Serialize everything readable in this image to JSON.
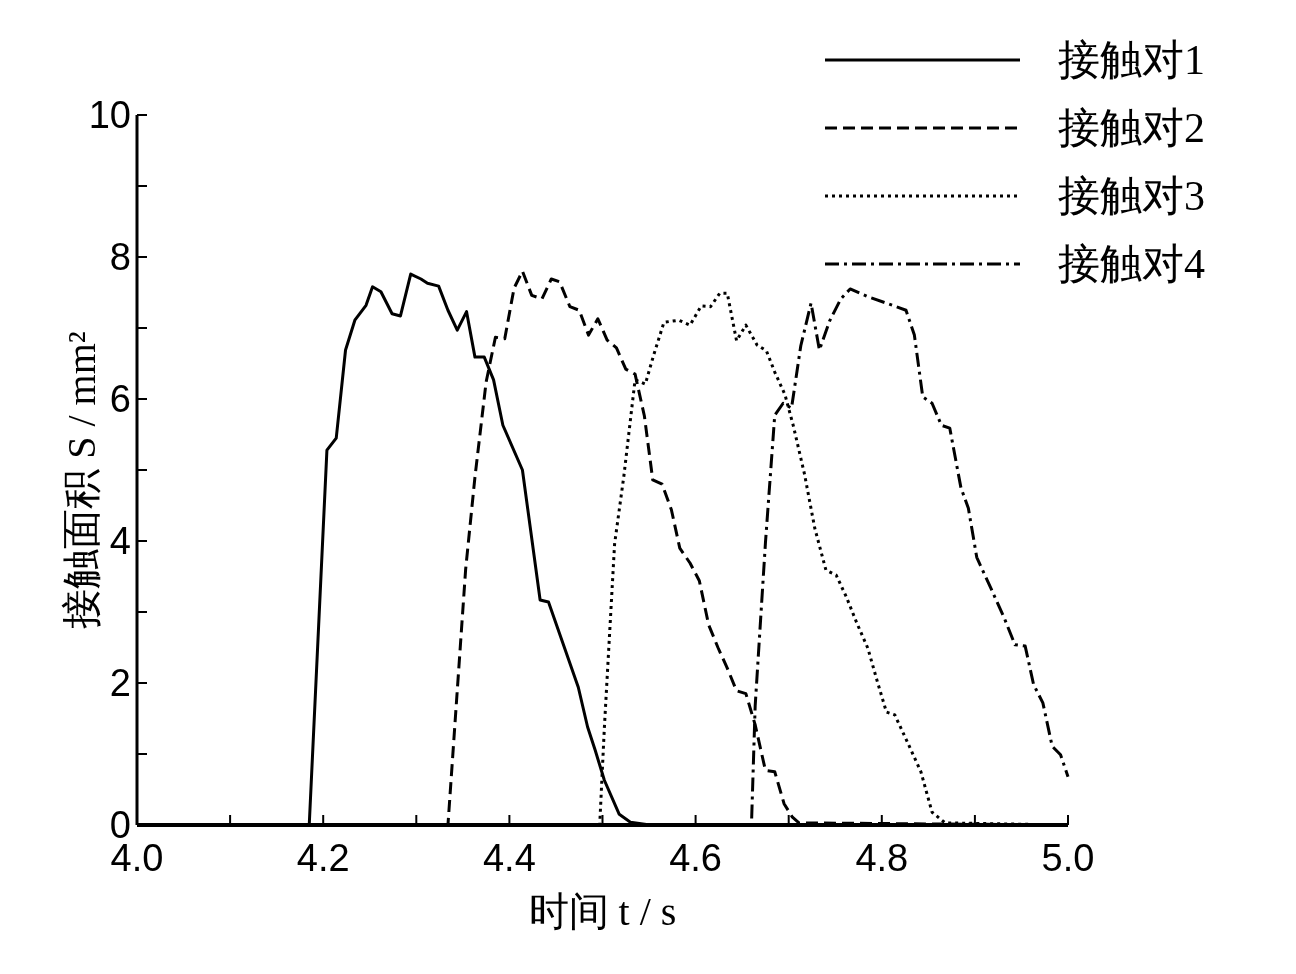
{
  "chart_data": {
    "type": "line",
    "xlabel": "时间 t / s",
    "ylabel": "接触面积 S / mm²",
    "xlim": [
      4.0,
      5.0
    ],
    "ylim": [
      0,
      10
    ],
    "xticks": [
      {
        "value": 4.0,
        "label": "4.0"
      },
      {
        "value": 4.1,
        "label": null
      },
      {
        "value": 4.2,
        "label": "4.2"
      },
      {
        "value": 4.3,
        "label": null
      },
      {
        "value": 4.4,
        "label": "4.4"
      },
      {
        "value": 4.5,
        "label": null
      },
      {
        "value": 4.6,
        "label": "4.6"
      },
      {
        "value": 4.7,
        "label": null
      },
      {
        "value": 4.8,
        "label": "4.8"
      },
      {
        "value": 4.9,
        "label": null
      },
      {
        "value": 5.0,
        "label": "5.0"
      }
    ],
    "yticks": [
      0,
      {
        "value": 1,
        "label": null
      },
      2,
      {
        "value": 3,
        "label": null
      },
      4,
      {
        "value": 5,
        "label": null
      },
      6,
      {
        "value": 7,
        "label": null
      },
      8,
      {
        "value": 9,
        "label": null
      },
      10
    ],
    "legend": "top right",
    "series": [
      {
        "name": "接触对1",
        "color": "#000000",
        "line_style": "solid",
        "x": [
          4.0,
          4.185,
          4.204,
          4.214,
          4.224,
          4.234,
          4.246,
          4.253,
          4.262,
          4.274,
          4.283,
          4.294,
          4.305,
          4.312,
          4.324,
          4.334,
          4.344,
          4.354,
          4.363,
          4.373,
          4.383,
          4.393,
          4.414,
          4.433,
          4.442,
          4.474,
          4.484,
          4.492,
          4.502,
          4.518,
          4.53,
          4.551,
          5.0
        ],
        "values": [
          0,
          0,
          5.28,
          5.45,
          6.69,
          7.11,
          7.32,
          7.58,
          7.51,
          7.2,
          7.17,
          7.76,
          7.69,
          7.63,
          7.59,
          7.25,
          6.97,
          7.23,
          6.59,
          6.59,
          6.27,
          5.63,
          5.0,
          3.17,
          3.14,
          1.94,
          1.38,
          1.06,
          0.63,
          0.15,
          0.04,
          0,
          0
        ]
      },
      {
        "name": "接触对2",
        "color": "#000000",
        "line_style": "dashed",
        "x": [
          4.0,
          4.334,
          4.353,
          4.363,
          4.375,
          4.385,
          4.395,
          4.405,
          4.414,
          4.424,
          4.435,
          4.445,
          4.454,
          4.465,
          4.475,
          4.485,
          4.495,
          4.505,
          4.515,
          4.525,
          4.535,
          4.545,
          4.554,
          4.564,
          4.574,
          4.583,
          4.594,
          4.604,
          4.614,
          4.624,
          4.634,
          4.644,
          4.654,
          4.664,
          4.675,
          4.685,
          4.695,
          4.704,
          4.711,
          5.0
        ],
        "values": [
          0,
          0,
          3.6,
          4.9,
          6.24,
          6.87,
          6.85,
          7.56,
          7.8,
          7.46,
          7.41,
          7.69,
          7.65,
          7.3,
          7.25,
          6.9,
          7.13,
          6.83,
          6.72,
          6.42,
          6.35,
          5.76,
          4.86,
          4.8,
          4.44,
          3.9,
          3.69,
          3.44,
          2.82,
          2.5,
          2.21,
          1.89,
          1.85,
          1.41,
          0.77,
          0.75,
          0.3,
          0.11,
          0.03,
          0
        ]
      },
      {
        "name": "接触对3",
        "color": "#000000",
        "line_style": "dotted",
        "x": [
          4.0,
          4.497,
          4.502,
          4.513,
          4.523,
          4.535,
          4.546,
          4.555,
          4.566,
          4.582,
          4.594,
          4.606,
          4.616,
          4.626,
          4.634,
          4.644,
          4.654,
          4.666,
          4.676,
          4.685,
          4.696,
          4.705,
          4.717,
          4.728,
          4.74,
          4.751,
          4.762,
          4.773,
          4.785,
          4.795,
          4.805,
          4.814,
          4.826,
          4.842,
          4.854,
          4.868,
          5.0
        ],
        "values": [
          0,
          0,
          1.37,
          3.96,
          4.92,
          6.27,
          6.21,
          6.62,
          7.08,
          7.11,
          7.04,
          7.31,
          7.3,
          7.49,
          7.49,
          6.82,
          7.04,
          6.76,
          6.68,
          6.38,
          6.06,
          5.62,
          4.94,
          4.18,
          3.59,
          3.52,
          3.21,
          2.85,
          2.49,
          2.03,
          1.59,
          1.55,
          1.21,
          0.75,
          0.18,
          0.03,
          0
        ]
      },
      {
        "name": "接触对4",
        "color": "#000000",
        "line_style": "dashdot",
        "x": [
          4.0,
          4.66,
          4.664,
          4.675,
          4.685,
          4.694,
          4.703,
          4.713,
          4.724,
          4.733,
          4.744,
          4.756,
          4.766,
          4.785,
          4.805,
          4.826,
          4.835,
          4.844,
          4.854,
          4.864,
          4.873,
          4.885,
          4.893,
          4.902,
          4.918,
          4.932,
          4.943,
          4.954,
          4.963,
          4.973,
          4.983,
          4.992,
          5.0
        ],
        "values": [
          0,
          0,
          1.68,
          3.97,
          5.77,
          5.94,
          5.87,
          6.75,
          7.35,
          6.69,
          7.1,
          7.41,
          7.55,
          7.44,
          7.35,
          7.25,
          6.9,
          6.03,
          5.94,
          5.63,
          5.59,
          4.75,
          4.46,
          3.77,
          3.31,
          2.9,
          2.54,
          2.52,
          1.98,
          1.72,
          1.11,
          0.99,
          0.68
        ]
      }
    ]
  }
}
